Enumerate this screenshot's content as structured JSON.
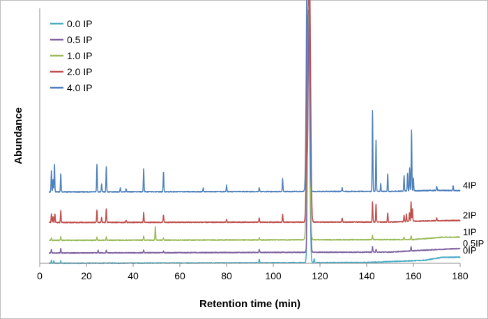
{
  "chart_data": {
    "type": "line",
    "title": "",
    "xlabel": "Retention time (min)",
    "ylabel": "Abundance",
    "xlim": [
      0,
      180
    ],
    "xticks": [
      0,
      20,
      40,
      60,
      80,
      100,
      120,
      140,
      160,
      180
    ],
    "ylim": [
      0,
      100
    ],
    "y_ticks_shown": false,
    "grid": false,
    "legend_position": "top-left",
    "series": [
      {
        "name": "0.0 IP",
        "trace_label": "0IP",
        "color": "#4bacc6",
        "baseline": 0,
        "drift": [
          [
            0,
            0
          ],
          [
            140,
            0.3
          ],
          [
            165,
            1.2
          ],
          [
            172,
            2.3
          ],
          [
            180,
            2.4
          ]
        ],
        "peaks": [
          [
            5,
            1.2
          ],
          [
            6,
            1.0
          ],
          [
            9,
            1.0
          ],
          [
            94,
            1.4
          ],
          [
            114.5,
            15
          ],
          [
            115.2,
            94
          ],
          [
            117.5,
            1.6
          ]
        ]
      },
      {
        "name": "0.5 IP",
        "trace_label": "0.5IP",
        "color": "#8064a2",
        "baseline": 4,
        "drift": [
          [
            0,
            0
          ],
          [
            150,
            0.4
          ],
          [
            170,
            1.4
          ],
          [
            180,
            1.8
          ]
        ],
        "peaks": [
          [
            5,
            1.5
          ],
          [
            9,
            2.0
          ],
          [
            25,
            1.0
          ],
          [
            28.5,
            1.0
          ],
          [
            44.5,
            1.0
          ],
          [
            53,
            0.7
          ],
          [
            94,
            1.2
          ],
          [
            114.5,
            20
          ],
          [
            115.3,
            95
          ],
          [
            142.5,
            2.2
          ],
          [
            144,
            1.2
          ],
          [
            159,
            1.6
          ]
        ]
      },
      {
        "name": "1.0 IP",
        "trace_label": "1IP",
        "color": "#9bbb59",
        "baseline": 9,
        "drift": [
          [
            0,
            0
          ],
          [
            160,
            0.3
          ],
          [
            172,
            1.2
          ],
          [
            180,
            1.3
          ]
        ],
        "peaks": [
          [
            5,
            1.0
          ],
          [
            9,
            1.5
          ],
          [
            24.5,
            1.2
          ],
          [
            28.5,
            1.2
          ],
          [
            44.5,
            1.5
          ],
          [
            49.5,
            5.4
          ],
          [
            53,
            0.8
          ],
          [
            94,
            0.9
          ],
          [
            114.6,
            45
          ],
          [
            115.3,
            90
          ],
          [
            142.5,
            1.6
          ],
          [
            156,
            1.0
          ],
          [
            159,
            1.5
          ]
        ]
      },
      {
        "name": "2.0 IP",
        "trace_label": "2IP",
        "color": "#c0504d",
        "baseline": 16,
        "drift": [
          [
            0,
            0
          ],
          [
            150,
            0.2
          ],
          [
            170,
            0.7
          ],
          [
            180,
            0.8
          ]
        ],
        "peaks": [
          [
            5,
            3.5
          ],
          [
            5.7,
            2.5
          ],
          [
            6.5,
            3.5
          ],
          [
            9,
            4.8
          ],
          [
            24.5,
            5.0
          ],
          [
            26.5,
            2.0
          ],
          [
            28.5,
            5.5
          ],
          [
            37,
            0.8
          ],
          [
            44.5,
            4.0
          ],
          [
            53,
            3.0
          ],
          [
            80,
            1.0
          ],
          [
            94,
            1.7
          ],
          [
            104,
            3.0
          ],
          [
            114.7,
            70
          ],
          [
            115.6,
            88
          ],
          [
            129.5,
            1.7
          ],
          [
            142.5,
            8.0
          ],
          [
            144,
            7.0
          ],
          [
            149,
            3.5
          ],
          [
            156,
            2.5
          ],
          [
            157,
            3.0
          ],
          [
            158.3,
            3.5
          ],
          [
            159,
            8.0
          ],
          [
            159.6,
            5.0
          ],
          [
            170,
            1.0
          ]
        ]
      },
      {
        "name": "4.0 IP",
        "trace_label": "4IP",
        "color": "#4f81bd",
        "baseline": 28,
        "drift": [
          [
            0,
            0
          ],
          [
            150,
            0.2
          ],
          [
            170,
            0.6
          ],
          [
            180,
            0.5
          ]
        ],
        "peaks": [
          [
            5,
            8.5
          ],
          [
            5.7,
            5.0
          ],
          [
            6.3,
            11.0
          ],
          [
            9,
            7.3
          ],
          [
            24.5,
            11.0
          ],
          [
            26.5,
            3.0
          ],
          [
            28.5,
            10.0
          ],
          [
            34.5,
            1.5
          ],
          [
            37,
            1.2
          ],
          [
            44.5,
            9.2
          ],
          [
            53,
            7.8
          ],
          [
            70,
            1.5
          ],
          [
            80,
            2.5
          ],
          [
            94,
            1.5
          ],
          [
            104,
            5.0
          ],
          [
            114.6,
            89
          ],
          [
            115.1,
            80
          ],
          [
            129.5,
            1.5
          ],
          [
            142.5,
            32
          ],
          [
            144,
            20
          ],
          [
            146,
            3.0
          ],
          [
            149,
            7.0
          ],
          [
            156,
            6.0
          ],
          [
            157.5,
            7.0
          ],
          [
            158.4,
            9.0
          ],
          [
            159.2,
            24
          ],
          [
            160,
            5.0
          ],
          [
            170,
            1.6
          ],
          [
            177,
            1.8
          ]
        ]
      }
    ]
  }
}
